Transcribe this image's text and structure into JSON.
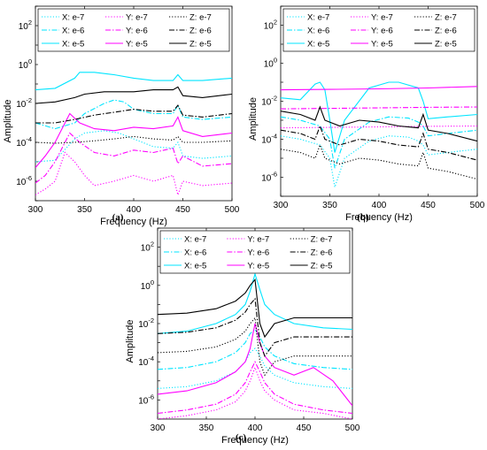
{
  "chart_data": [
    {
      "type": "line",
      "caption": "(a)",
      "xlabel": "Frequency (Hz)",
      "ylabel": "Amplitude",
      "xlim": [
        300,
        500
      ],
      "xticks": [
        300,
        350,
        400,
        450,
        500
      ],
      "ylog": true,
      "ylim_exponent": [
        -7,
        3
      ],
      "yticks": [
        "10^-6",
        "10^-4",
        "10^-2",
        "10^0",
        "10^2"
      ],
      "legend_position": "top",
      "series": [
        {
          "name": "X: e-7",
          "color": "#00e5ff",
          "dash": "dot",
          "x": [
            300,
            320,
            340,
            350,
            370,
            385,
            400,
            420,
            440,
            445,
            450,
            470,
            500
          ],
          "y": [
            1e-05,
            1.2e-05,
            0.00015,
            0.0003,
            0.0004,
            0.0003,
            0.00015,
            6e-05,
            5e-05,
            0.0001,
            2e-05,
            1.5e-05,
            2e-05
          ]
        },
        {
          "name": "X: e-6",
          "color": "#00e5ff",
          "dash": "dashdot",
          "x": [
            300,
            320,
            340,
            350,
            370,
            380,
            390,
            400,
            420,
            440,
            445,
            450,
            470,
            500
          ],
          "y": [
            0.001,
            0.0005,
            0.001,
            0.003,
            0.01,
            0.015,
            0.012,
            0.005,
            0.003,
            0.003,
            0.008,
            0.002,
            0.0015,
            0.002
          ]
        },
        {
          "name": "X: e-5",
          "color": "#00e5ff",
          "dash": "solid",
          "x": [
            300,
            320,
            340,
            345,
            360,
            380,
            400,
            420,
            440,
            445,
            450,
            470,
            500
          ],
          "y": [
            0.05,
            0.06,
            0.2,
            0.4,
            0.4,
            0.3,
            0.2,
            0.15,
            0.15,
            0.3,
            0.15,
            0.15,
            0.2
          ]
        },
        {
          "name": "Y: e-7",
          "color": "#ff00ff",
          "dash": "dot",
          "x": [
            300,
            310,
            320,
            330,
            340,
            350,
            360,
            380,
            400,
            420,
            440,
            445,
            450,
            470,
            500
          ],
          "y": [
            2e-07,
            4e-07,
            1e-06,
            3e-05,
            1e-05,
            2e-06,
            6e-07,
            1e-06,
            2e-06,
            1e-06,
            2e-06,
            2e-07,
            1e-06,
            6e-07,
            8e-07
          ]
        },
        {
          "name": "Y: e-6",
          "color": "#ff00ff",
          "dash": "dashdot",
          "x": [
            300,
            310,
            320,
            335,
            345,
            360,
            380,
            400,
            420,
            440,
            445,
            450,
            470,
            500
          ],
          "y": [
            8e-07,
            2e-06,
            1e-05,
            0.0003,
            0.0001,
            3e-05,
            2e-05,
            4e-05,
            3e-05,
            5e-05,
            8e-06,
            2e-05,
            6e-06,
            8e-06
          ]
        },
        {
          "name": "Y: e-5",
          "color": "#ff00ff",
          "dash": "solid",
          "x": [
            300,
            310,
            320,
            335,
            345,
            360,
            380,
            400,
            420,
            440,
            445,
            450,
            470,
            500
          ],
          "y": [
            5e-06,
            2e-05,
            0.0001,
            0.003,
            0.001,
            0.0005,
            0.0004,
            0.0006,
            0.0005,
            0.0007,
            0.002,
            0.0004,
            0.0002,
            0.0003
          ]
        },
        {
          "name": "Z: e-7",
          "color": "#000000",
          "dash": "dot",
          "x": [
            300,
            320,
            340,
            360,
            380,
            400,
            420,
            440,
            445,
            450,
            470,
            500
          ],
          "y": [
            0.0001,
            9e-05,
            0.0001,
            0.00012,
            0.00015,
            0.0002,
            0.00015,
            0.00013,
            0.0002,
            0.0001,
            0.0001,
            0.00012
          ]
        },
        {
          "name": "Z: e-6",
          "color": "#000000",
          "dash": "dashdot",
          "x": [
            300,
            320,
            340,
            360,
            380,
            400,
            420,
            440,
            445,
            450,
            470,
            500
          ],
          "y": [
            0.001,
            0.001,
            0.0015,
            0.0025,
            0.0035,
            0.005,
            0.004,
            0.004,
            0.008,
            0.0025,
            0.002,
            0.003
          ]
        },
        {
          "name": "Z: e-5",
          "color": "#000000",
          "dash": "solid",
          "x": [
            300,
            320,
            340,
            350,
            370,
            400,
            420,
            440,
            445,
            450,
            470,
            500
          ],
          "y": [
            0.01,
            0.012,
            0.02,
            0.03,
            0.04,
            0.04,
            0.05,
            0.05,
            0.07,
            0.025,
            0.02,
            0.03
          ]
        }
      ]
    },
    {
      "type": "line",
      "caption": "(b)",
      "xlabel": "Frequency (Hz)",
      "ylabel": "Amplitude",
      "xlim": [
        300,
        500
      ],
      "xticks": [
        300,
        350,
        400,
        450,
        500
      ],
      "ylog": true,
      "ylim_exponent": [
        -7,
        3
      ],
      "yticks": [
        "10^-6",
        "10^-4",
        "10^-2",
        "10^0",
        "10^2"
      ],
      "legend_position": "top",
      "series": [
        {
          "name": "X: e-7",
          "color": "#00e5ff",
          "dash": "dot",
          "x": [
            300,
            320,
            340,
            350,
            355,
            365,
            390,
            410,
            430,
            440,
            445,
            450,
            470,
            500
          ],
          "y": [
            0.00015,
            0.0001,
            5e-05,
            1e-05,
            3e-07,
            1e-05,
            8e-05,
            0.00015,
            0.00013,
            8e-05,
            5e-05,
            1.5e-05,
            2e-05,
            3e-05
          ]
        },
        {
          "name": "X: e-6",
          "color": "#00e5ff",
          "dash": "dashdot",
          "x": [
            300,
            320,
            340,
            350,
            355,
            365,
            390,
            410,
            430,
            440,
            445,
            450,
            470,
            500
          ],
          "y": [
            0.0015,
            0.001,
            0.0005,
            0.0001,
            3e-06,
            0.0001,
            0.0008,
            0.0015,
            0.0013,
            0.0008,
            0.0005,
            0.00015,
            0.0002,
            0.0003
          ]
        },
        {
          "name": "X: e-5",
          "color": "#00e5ff",
          "dash": "solid",
          "x": [
            300,
            320,
            335,
            340,
            345,
            350,
            355,
            365,
            390,
            410,
            420,
            440,
            445,
            450,
            470,
            500
          ],
          "y": [
            0.015,
            0.012,
            0.08,
            0.1,
            0.04,
            0.001,
            2e-05,
            0.001,
            0.05,
            0.1,
            0.1,
            0.05,
            0.01,
            0.0012,
            0.0015,
            0.002
          ]
        },
        {
          "name": "Y: e-7",
          "color": "#ff00ff",
          "dash": "dot",
          "x": [
            300,
            350,
            400,
            450,
            500
          ],
          "y": [
            0.0004,
            0.00042,
            0.00045,
            0.00048,
            0.0005
          ]
        },
        {
          "name": "Y: e-6",
          "color": "#ff00ff",
          "dash": "dashdot",
          "x": [
            300,
            350,
            400,
            450,
            500
          ],
          "y": [
            0.004,
            0.0042,
            0.0045,
            0.0048,
            0.005
          ]
        },
        {
          "name": "Y: e-5",
          "color": "#ff00ff",
          "dash": "solid",
          "x": [
            300,
            350,
            400,
            450,
            500
          ],
          "y": [
            0.04,
            0.042,
            0.045,
            0.05,
            0.06
          ]
        },
        {
          "name": "Z: e-7",
          "color": "#000000",
          "dash": "dot",
          "x": [
            300,
            320,
            335,
            340,
            345,
            360,
            380,
            400,
            420,
            440,
            445,
            450,
            470,
            500
          ],
          "y": [
            3e-05,
            2e-05,
            1e-05,
            5e-05,
            1e-05,
            5e-06,
            1e-05,
            8e-06,
            5e-06,
            4e-06,
            2e-05,
            3e-06,
            2e-06,
            8e-07
          ]
        },
        {
          "name": "Z: e-6",
          "color": "#000000",
          "dash": "dashdot",
          "x": [
            300,
            320,
            335,
            340,
            345,
            360,
            380,
            400,
            420,
            440,
            445,
            450,
            470,
            500
          ],
          "y": [
            0.0003,
            0.0002,
            0.0001,
            0.0005,
            0.0001,
            5e-05,
            0.0001,
            8e-05,
            5e-05,
            4e-05,
            0.0002,
            3e-05,
            2e-05,
            8e-06
          ]
        },
        {
          "name": "Z: e-5",
          "color": "#000000",
          "dash": "solid",
          "x": [
            300,
            320,
            335,
            340,
            345,
            360,
            380,
            400,
            420,
            440,
            445,
            450,
            470,
            500
          ],
          "y": [
            0.003,
            0.002,
            0.001,
            0.005,
            0.001,
            0.0005,
            0.001,
            0.0008,
            0.0005,
            0.0004,
            0.002,
            0.0003,
            0.0002,
            8e-05
          ]
        }
      ]
    },
    {
      "type": "line",
      "caption": "(c)",
      "xlabel": "Frequency (Hz)",
      "ylabel": "Amplitude",
      "xlim": [
        300,
        500
      ],
      "xticks": [
        300,
        350,
        400,
        450,
        500
      ],
      "ylog": true,
      "ylim_exponent": [
        -7,
        3
      ],
      "yticks": [
        "10^-6",
        "10^-4",
        "10^-2",
        "10^0",
        "10^2"
      ],
      "legend_position": "top",
      "series": [
        {
          "name": "X: e-7",
          "color": "#00e5ff",
          "dash": "dot",
          "x": [
            300,
            330,
            360,
            380,
            390,
            395,
            400,
            405,
            410,
            420,
            440,
            470,
            500
          ],
          "y": [
            4e-06,
            5e-06,
            1e-05,
            3e-05,
            0.0001,
            0.0003,
            0.0005,
            0.0002,
            6e-05,
            2e-05,
            8e-06,
            5e-06,
            4e-06
          ]
        },
        {
          "name": "X: e-6",
          "color": "#00e5ff",
          "dash": "dashdot",
          "x": [
            300,
            330,
            360,
            380,
            390,
            395,
            400,
            405,
            410,
            420,
            440,
            470,
            500
          ],
          "y": [
            4e-05,
            5e-05,
            0.0001,
            0.0003,
            0.001,
            0.003,
            0.005,
            0.002,
            0.0006,
            0.0002,
            8e-05,
            5e-05,
            4e-05
          ]
        },
        {
          "name": "X: e-5",
          "color": "#00e5ff",
          "dash": "solid",
          "x": [
            300,
            330,
            360,
            380,
            390,
            395,
            400,
            405,
            410,
            420,
            440,
            470,
            500
          ],
          "y": [
            0.003,
            0.004,
            0.01,
            0.03,
            0.1,
            0.5,
            4,
            0.6,
            0.1,
            0.03,
            0.01,
            0.006,
            0.005
          ]
        },
        {
          "name": "Y: e-7",
          "color": "#ff00ff",
          "dash": "dot",
          "x": [
            300,
            330,
            360,
            380,
            390,
            395,
            400,
            405,
            410,
            420,
            440,
            470,
            500
          ],
          "y": [
            1e-07,
            1.5e-07,
            3e-07,
            8e-07,
            3e-06,
            1e-05,
            5e-05,
            1e-05,
            3e-06,
            1e-06,
            3e-07,
            2e-07,
            1e-07
          ]
        },
        {
          "name": "Y: e-6",
          "color": "#ff00ff",
          "dash": "dashdot",
          "x": [
            300,
            330,
            360,
            380,
            390,
            395,
            400,
            405,
            410,
            420,
            440,
            470,
            500
          ],
          "y": [
            2e-07,
            3e-07,
            6e-07,
            2e-06,
            8e-06,
            3e-05,
            0.0001,
            3e-05,
            8e-06,
            2e-06,
            6e-07,
            3e-07,
            2e-07
          ]
        },
        {
          "name": "Y: e-5",
          "color": "#ff00ff",
          "dash": "solid",
          "x": [
            300,
            330,
            360,
            380,
            390,
            395,
            400,
            405,
            410,
            420,
            440,
            460,
            480,
            500
          ],
          "y": [
            2e-06,
            3e-06,
            8e-06,
            3e-05,
            0.0001,
            0.0005,
            0.01,
            0.001,
            0.0002,
            5e-05,
            2e-05,
            5e-05,
            1e-05,
            5e-07
          ]
        },
        {
          "name": "Z: e-7",
          "color": "#000000",
          "dash": "dot",
          "x": [
            300,
            330,
            360,
            380,
            390,
            395,
            400,
            405,
            410,
            420,
            440,
            470,
            500
          ],
          "y": [
            0.0003,
            0.00035,
            0.0006,
            0.0015,
            0.004,
            0.01,
            0.02,
            0.0001,
            2e-05,
            0.0001,
            0.0002,
            0.0002,
            0.0002
          ]
        },
        {
          "name": "Z: e-6",
          "color": "#000000",
          "dash": "dashdot",
          "x": [
            300,
            330,
            360,
            380,
            390,
            395,
            400,
            405,
            410,
            420,
            440,
            470,
            500
          ],
          "y": [
            0.003,
            0.0035,
            0.006,
            0.015,
            0.04,
            0.1,
            0.2,
            0.001,
            0.0002,
            0.001,
            0.002,
            0.002,
            0.002
          ]
        },
        {
          "name": "Z: e-5",
          "color": "#000000",
          "dash": "solid",
          "x": [
            300,
            330,
            360,
            380,
            390,
            395,
            400,
            405,
            410,
            420,
            440,
            470,
            500
          ],
          "y": [
            0.03,
            0.035,
            0.06,
            0.15,
            0.4,
            1,
            2,
            0.01,
            0.002,
            0.01,
            0.02,
            0.02,
            0.02
          ]
        }
      ]
    }
  ],
  "colors": {
    "cyan": "#00e5ff",
    "magenta": "#ff00ff",
    "black": "#000000"
  }
}
